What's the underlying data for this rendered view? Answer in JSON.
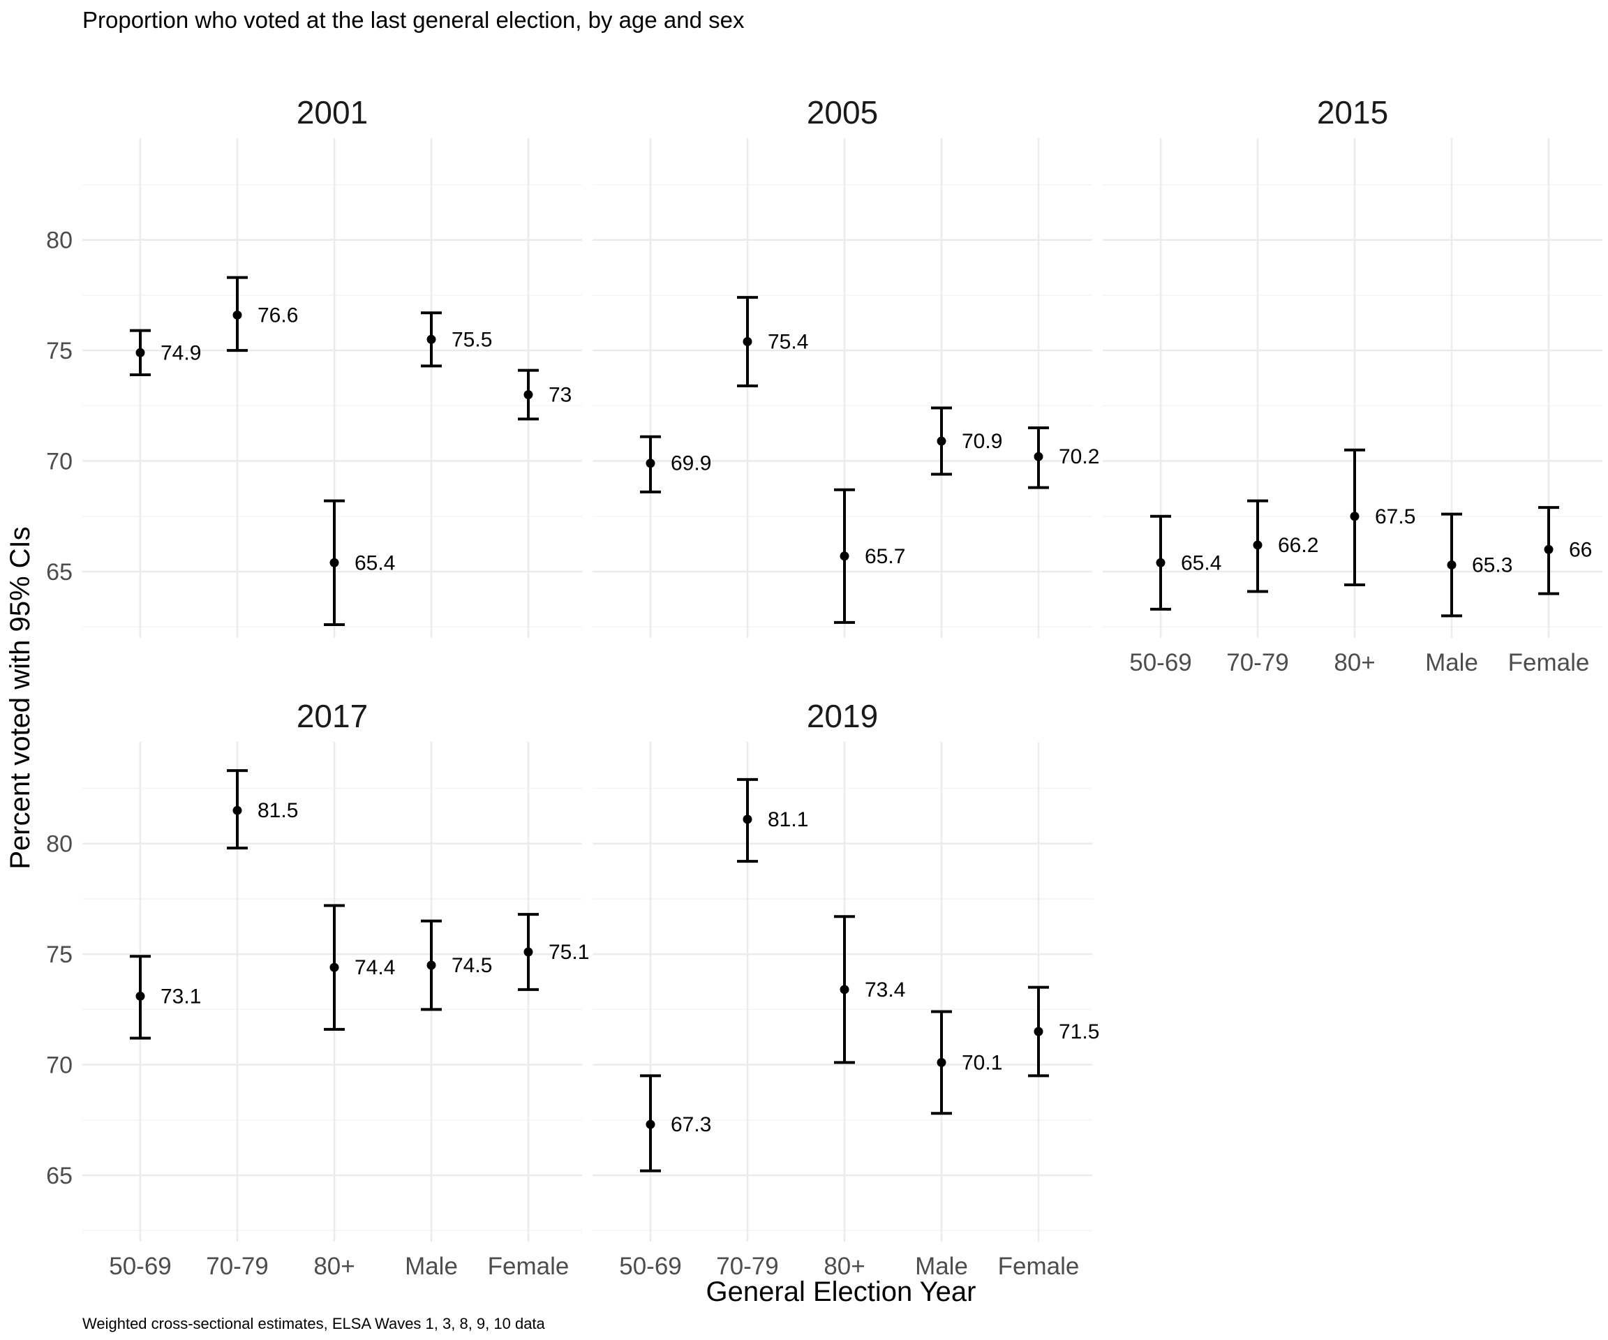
{
  "chart_data": {
    "type": "errorbar",
    "title": "Proportion who voted at the last general election, by age and sex",
    "caption": "Weighted cross-sectional estimates, ELSA Waves 1, 3, 8, 9, 10 data",
    "xlabel": "General Election Year",
    "ylabel": "Percent voted with 95% CIs",
    "categories": [
      "50-69",
      "70-79",
      "80+",
      "Male",
      "Female"
    ],
    "ylim": [
      62.0,
      84.6
    ],
    "yticks": [
      65,
      70,
      75,
      80
    ],
    "grid": true,
    "legend": "none",
    "colors": {
      "mark": "#000000",
      "grid_major": "#ebebeb",
      "grid_minor": "#f4f4f4",
      "axis_text": "#4d4d4d"
    },
    "panels": [
      {
        "strip": "2001",
        "points": [
          {
            "category": "50-69",
            "estimate": 74.9,
            "low": 73.9,
            "high": 75.9,
            "label": "74.9"
          },
          {
            "category": "70-79",
            "estimate": 76.6,
            "low": 75.0,
            "high": 78.3,
            "label": "76.6"
          },
          {
            "category": "80+",
            "estimate": 65.4,
            "low": 62.6,
            "high": 68.2,
            "label": "65.4"
          },
          {
            "category": "Male",
            "estimate": 75.5,
            "low": 74.3,
            "high": 76.7,
            "label": "75.5"
          },
          {
            "category": "Female",
            "estimate": 73.0,
            "low": 71.9,
            "high": 74.1,
            "label": "73"
          }
        ]
      },
      {
        "strip": "2005",
        "points": [
          {
            "category": "50-69",
            "estimate": 69.9,
            "low": 68.6,
            "high": 71.1,
            "label": "69.9"
          },
          {
            "category": "70-79",
            "estimate": 75.4,
            "low": 73.4,
            "high": 77.4,
            "label": "75.4"
          },
          {
            "category": "80+",
            "estimate": 65.7,
            "low": 62.7,
            "high": 68.7,
            "label": "65.7"
          },
          {
            "category": "Male",
            "estimate": 70.9,
            "low": 69.4,
            "high": 72.4,
            "label": "70.9"
          },
          {
            "category": "Female",
            "estimate": 70.2,
            "low": 68.8,
            "high": 71.5,
            "label": "70.2"
          }
        ]
      },
      {
        "strip": "2015",
        "points": [
          {
            "category": "50-69",
            "estimate": 65.4,
            "low": 63.3,
            "high": 67.5,
            "label": "65.4"
          },
          {
            "category": "70-79",
            "estimate": 66.2,
            "low": 64.1,
            "high": 68.2,
            "label": "66.2"
          },
          {
            "category": "80+",
            "estimate": 67.5,
            "low": 64.4,
            "high": 70.5,
            "label": "67.5"
          },
          {
            "category": "Male",
            "estimate": 65.3,
            "low": 63.0,
            "high": 67.6,
            "label": "65.3"
          },
          {
            "category": "Female",
            "estimate": 66.0,
            "low": 64.0,
            "high": 67.9,
            "label": "66"
          }
        ]
      },
      {
        "strip": "2017",
        "points": [
          {
            "category": "50-69",
            "estimate": 73.1,
            "low": 71.2,
            "high": 74.9,
            "label": "73.1"
          },
          {
            "category": "70-79",
            "estimate": 81.5,
            "low": 79.8,
            "high": 83.3,
            "label": "81.5"
          },
          {
            "category": "80+",
            "estimate": 74.4,
            "low": 71.6,
            "high": 77.2,
            "label": "74.4"
          },
          {
            "category": "Male",
            "estimate": 74.5,
            "low": 72.5,
            "high": 76.5,
            "label": "74.5"
          },
          {
            "category": "Female",
            "estimate": 75.1,
            "low": 73.4,
            "high": 76.8,
            "label": "75.1"
          }
        ]
      },
      {
        "strip": "2019",
        "points": [
          {
            "category": "50-69",
            "estimate": 67.3,
            "low": 65.2,
            "high": 69.5,
            "label": "67.3"
          },
          {
            "category": "70-79",
            "estimate": 81.1,
            "low": 79.2,
            "high": 82.9,
            "label": "81.1"
          },
          {
            "category": "80+",
            "estimate": 73.4,
            "low": 70.1,
            "high": 76.7,
            "label": "73.4"
          },
          {
            "category": "Male",
            "estimate": 70.1,
            "low": 67.8,
            "high": 72.4,
            "label": "70.1"
          },
          {
            "category": "Female",
            "estimate": 71.5,
            "low": 69.5,
            "high": 73.5,
            "label": "71.5"
          }
        ]
      }
    ]
  }
}
